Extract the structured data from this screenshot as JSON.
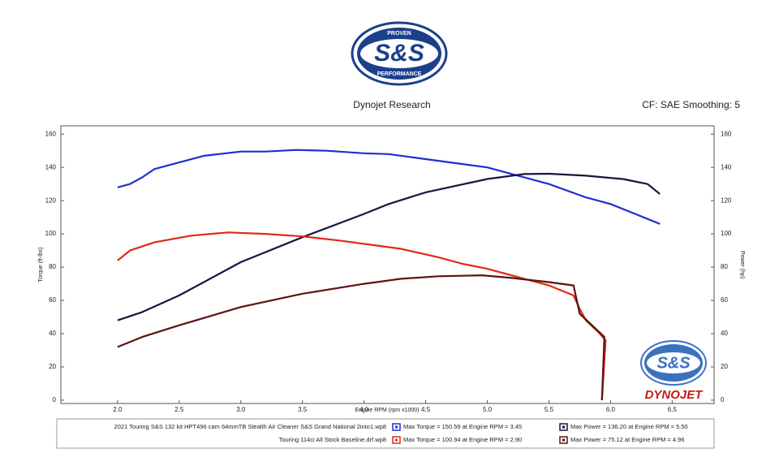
{
  "branding": {
    "logo_top": "PROVEN",
    "logo_main": "S&S",
    "logo_bottom": "PERFORMANCE",
    "watermark": "DYNOJET"
  },
  "chart_data": {
    "type": "line",
    "title": "Dynojet Research",
    "subtitle": "CF: SAE Smoothing: 5",
    "x_label": "Engine RPM (rpm x1000)",
    "y_label": "Torque (ft-lbs)",
    "y2_label": "Power (hp)",
    "xlim": [
      1.54,
      6.84
    ],
    "xticks": [
      {
        "value": 2,
        "label": "2.0"
      },
      {
        "value": 2.5,
        "label": "2.5"
      },
      {
        "value": 3,
        "label": "3.0"
      },
      {
        "value": 3.5,
        "label": "3.5"
      },
      {
        "value": 4,
        "label": "4.0"
      },
      {
        "value": 4.5,
        "label": "4.5"
      },
      {
        "value": 5,
        "label": "5.0"
      },
      {
        "value": 5.5,
        "label": "5.5"
      },
      {
        "value": 6,
        "label": "6.0"
      },
      {
        "value": 6.5,
        "label": "6.5"
      }
    ],
    "ylim": [
      -2,
      165
    ],
    "yticks": [
      0,
      20,
      40,
      60,
      80,
      100,
      120,
      140,
      160
    ],
    "y2lim": [
      -2,
      165
    ],
    "y2ticks": [
      0,
      20,
      40,
      60,
      80,
      100,
      120,
      140,
      160
    ],
    "grid": false,
    "runs": [
      "2021 Touring S&S 132 kit HPT496 cam 64mmTB Stealth Air Cleaner S&S Grand National 2into1.wp8",
      "Touring 114ci All Stock Baseline.drf.wp8"
    ],
    "series": [
      {
        "name": "Max Torque = 150.59 at Engine RPM = 3.45",
        "color": "#1f2fd0",
        "axis": "y",
        "x": [
          2.0,
          2.1,
          2.2,
          2.3,
          2.5,
          2.7,
          3.0,
          3.2,
          3.45,
          3.7,
          4.0,
          4.2,
          4.5,
          4.8,
          5.0,
          5.2,
          5.5,
          5.8,
          6.0,
          6.2,
          6.4
        ],
        "values": [
          128,
          130,
          134,
          139,
          143,
          147,
          149.5,
          149.5,
          150.5,
          150,
          148.5,
          148,
          145,
          142,
          140,
          136,
          130,
          122,
          118,
          112,
          106
        ]
      },
      {
        "name": "Max Power = 136.20 at Engine RPM = 5.50",
        "color": "#15173d",
        "axis": "y2",
        "x": [
          2.0,
          2.2,
          2.5,
          3.0,
          3.5,
          4.0,
          4.2,
          4.5,
          5.0,
          5.3,
          5.5,
          5.8,
          6.1,
          6.3,
          6.4
        ],
        "values": [
          48,
          53,
          63,
          83,
          98,
          112,
          118,
          125,
          133,
          136,
          136.2,
          135,
          133,
          130,
          124
        ]
      },
      {
        "name": "Max Torque = 100.94 at Engine RPM = 2.90",
        "color": "#e0281c",
        "axis": "y",
        "x": [
          2.0,
          2.1,
          2.3,
          2.6,
          2.9,
          3.2,
          3.5,
          3.8,
          4.0,
          4.3,
          4.6,
          4.8,
          5.0,
          5.3,
          5.5,
          5.7,
          5.75,
          5.8,
          5.9,
          5.96,
          5.93
        ],
        "values": [
          84,
          90,
          95,
          99,
          100.9,
          100,
          98.5,
          96,
          94,
          91,
          86,
          82,
          79,
          73,
          69,
          63,
          55,
          48,
          41,
          36,
          0
        ]
      },
      {
        "name": "Max Power = 75.12 at Engine RPM = 4.96",
        "color": "#5a1410",
        "axis": "y2",
        "x": [
          2.0,
          2.2,
          2.5,
          3.0,
          3.5,
          4.0,
          4.3,
          4.6,
          4.96,
          5.2,
          5.5,
          5.7,
          5.75,
          5.85,
          5.95,
          5.93
        ],
        "values": [
          32,
          38,
          45,
          56,
          64,
          70,
          73,
          74.5,
          75.1,
          73.5,
          71,
          69,
          52,
          45,
          38,
          0
        ]
      }
    ]
  }
}
